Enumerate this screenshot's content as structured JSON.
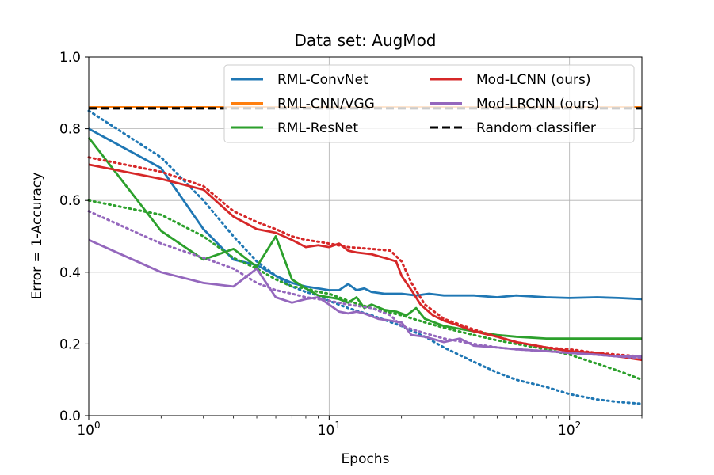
{
  "chart_data": {
    "type": "line",
    "title": "Data set: AugMod",
    "xlabel": "Epochs",
    "ylabel": "Error = 1-Accuracy",
    "xscale": "log",
    "xlim": [
      1,
      200
    ],
    "ylim": [
      0.0,
      1.0
    ],
    "yticks": [
      "0.0",
      "0.2",
      "0.4",
      "0.6",
      "0.8",
      "1.0"
    ],
    "xticks": [
      {
        "value": 1,
        "base": "10",
        "exp": "0"
      },
      {
        "value": 10,
        "base": "10",
        "exp": "1"
      },
      {
        "value": 100,
        "base": "10",
        "exp": "2"
      }
    ],
    "grid": true,
    "legend_position": "top-right",
    "legend_columns": 2,
    "series": [
      {
        "name": "RML-ConvNet",
        "color": "#1f77b4",
        "legend": true,
        "style": "solid",
        "points": [
          [
            1,
            0.8
          ],
          [
            2,
            0.69
          ],
          [
            3,
            0.52
          ],
          [
            4,
            0.435
          ],
          [
            5,
            0.42
          ],
          [
            6,
            0.39
          ],
          [
            7,
            0.37
          ],
          [
            8,
            0.36
          ],
          [
            9,
            0.355
          ],
          [
            10,
            0.35
          ],
          [
            11,
            0.35
          ],
          [
            12,
            0.367
          ],
          [
            13,
            0.35
          ],
          [
            14,
            0.355
          ],
          [
            15,
            0.345
          ],
          [
            17,
            0.34
          ],
          [
            20,
            0.34
          ],
          [
            23,
            0.335
          ],
          [
            26,
            0.34
          ],
          [
            30,
            0.335
          ],
          [
            40,
            0.335
          ],
          [
            50,
            0.33
          ],
          [
            60,
            0.335
          ],
          [
            80,
            0.33
          ],
          [
            100,
            0.328
          ],
          [
            130,
            0.33
          ],
          [
            160,
            0.328
          ],
          [
            200,
            0.325
          ]
        ]
      },
      {
        "name": "RML-ConvNet (val)",
        "color": "#1f77b4",
        "legend": false,
        "style": "dotted",
        "points": [
          [
            1,
            0.85
          ],
          [
            2,
            0.72
          ],
          [
            3,
            0.6
          ],
          [
            4,
            0.5
          ],
          [
            5,
            0.43
          ],
          [
            6,
            0.39
          ],
          [
            7,
            0.36
          ],
          [
            8,
            0.345
          ],
          [
            9,
            0.335
          ],
          [
            10,
            0.32
          ],
          [
            12,
            0.3
          ],
          [
            15,
            0.28
          ],
          [
            20,
            0.25
          ],
          [
            25,
            0.22
          ],
          [
            30,
            0.19
          ],
          [
            40,
            0.15
          ],
          [
            50,
            0.12
          ],
          [
            60,
            0.1
          ],
          [
            80,
            0.08
          ],
          [
            100,
            0.06
          ],
          [
            130,
            0.045
          ],
          [
            160,
            0.038
          ],
          [
            200,
            0.033
          ]
        ]
      },
      {
        "name": "RML-CNN/VGG",
        "color": "#ff7f0e",
        "legend": true,
        "style": "solid",
        "points": [
          [
            1,
            0.86
          ],
          [
            200,
            0.86
          ]
        ]
      },
      {
        "name": "RML-ResNet",
        "color": "#2ca02c",
        "legend": true,
        "style": "solid",
        "points": [
          [
            1,
            0.775
          ],
          [
            2,
            0.515
          ],
          [
            3,
            0.435
          ],
          [
            4,
            0.465
          ],
          [
            5,
            0.415
          ],
          [
            6,
            0.5
          ],
          [
            7,
            0.38
          ],
          [
            8,
            0.355
          ],
          [
            9,
            0.335
          ],
          [
            10,
            0.33
          ],
          [
            11,
            0.325
          ],
          [
            12,
            0.315
          ],
          [
            13,
            0.33
          ],
          [
            14,
            0.3
          ],
          [
            15,
            0.31
          ],
          [
            17,
            0.295
          ],
          [
            19,
            0.29
          ],
          [
            21,
            0.28
          ],
          [
            23,
            0.3
          ],
          [
            25,
            0.27
          ],
          [
            30,
            0.25
          ],
          [
            40,
            0.235
          ],
          [
            50,
            0.225
          ],
          [
            60,
            0.22
          ],
          [
            80,
            0.215
          ],
          [
            100,
            0.215
          ],
          [
            130,
            0.215
          ],
          [
            160,
            0.215
          ],
          [
            200,
            0.215
          ]
        ]
      },
      {
        "name": "RML-ResNet (val)",
        "color": "#2ca02c",
        "legend": false,
        "style": "dotted",
        "points": [
          [
            1,
            0.6
          ],
          [
            2,
            0.56
          ],
          [
            3,
            0.5
          ],
          [
            4,
            0.44
          ],
          [
            5,
            0.41
          ],
          [
            6,
            0.38
          ],
          [
            7,
            0.36
          ],
          [
            8,
            0.355
          ],
          [
            9,
            0.345
          ],
          [
            10,
            0.34
          ],
          [
            12,
            0.32
          ],
          [
            15,
            0.3
          ],
          [
            20,
            0.28
          ],
          [
            25,
            0.26
          ],
          [
            30,
            0.245
          ],
          [
            40,
            0.225
          ],
          [
            50,
            0.21
          ],
          [
            60,
            0.2
          ],
          [
            80,
            0.185
          ],
          [
            100,
            0.17
          ],
          [
            130,
            0.145
          ],
          [
            160,
            0.125
          ],
          [
            200,
            0.1
          ]
        ]
      },
      {
        "name": "Mod-LCNN (ours)",
        "color": "#d62728",
        "legend": true,
        "style": "solid",
        "points": [
          [
            1,
            0.7
          ],
          [
            2,
            0.66
          ],
          [
            3,
            0.63
          ],
          [
            4,
            0.555
          ],
          [
            5,
            0.52
          ],
          [
            6,
            0.51
          ],
          [
            7,
            0.49
          ],
          [
            8,
            0.47
          ],
          [
            9,
            0.475
          ],
          [
            10,
            0.47
          ],
          [
            11,
            0.48
          ],
          [
            12,
            0.46
          ],
          [
            13,
            0.455
          ],
          [
            15,
            0.45
          ],
          [
            17,
            0.44
          ],
          [
            19,
            0.43
          ],
          [
            20,
            0.39
          ],
          [
            22,
            0.35
          ],
          [
            24,
            0.31
          ],
          [
            27,
            0.28
          ],
          [
            30,
            0.265
          ],
          [
            35,
            0.25
          ],
          [
            40,
            0.235
          ],
          [
            50,
            0.22
          ],
          [
            60,
            0.205
          ],
          [
            80,
            0.19
          ],
          [
            100,
            0.18
          ],
          [
            130,
            0.175
          ],
          [
            160,
            0.165
          ],
          [
            200,
            0.155
          ]
        ]
      },
      {
        "name": "Mod-LCNN (ours) (val)",
        "color": "#d62728",
        "legend": false,
        "style": "dotted",
        "points": [
          [
            1,
            0.72
          ],
          [
            2,
            0.68
          ],
          [
            3,
            0.64
          ],
          [
            4,
            0.57
          ],
          [
            5,
            0.54
          ],
          [
            6,
            0.52
          ],
          [
            7,
            0.5
          ],
          [
            8,
            0.49
          ],
          [
            9,
            0.485
          ],
          [
            10,
            0.48
          ],
          [
            12,
            0.47
          ],
          [
            15,
            0.465
          ],
          [
            18,
            0.46
          ],
          [
            20,
            0.43
          ],
          [
            22,
            0.37
          ],
          [
            25,
            0.31
          ],
          [
            30,
            0.27
          ],
          [
            40,
            0.24
          ],
          [
            50,
            0.22
          ],
          [
            60,
            0.205
          ],
          [
            80,
            0.19
          ],
          [
            100,
            0.185
          ],
          [
            130,
            0.175
          ],
          [
            160,
            0.17
          ],
          [
            200,
            0.165
          ]
        ]
      },
      {
        "name": "Mod-LRCNN (ours)",
        "color": "#9467bd",
        "legend": true,
        "style": "solid",
        "points": [
          [
            1,
            0.49
          ],
          [
            2,
            0.4
          ],
          [
            3,
            0.37
          ],
          [
            4,
            0.36
          ],
          [
            5,
            0.41
          ],
          [
            6,
            0.33
          ],
          [
            7,
            0.315
          ],
          [
            8,
            0.325
          ],
          [
            9,
            0.33
          ],
          [
            10,
            0.31
          ],
          [
            11,
            0.29
          ],
          [
            12,
            0.285
          ],
          [
            13,
            0.29
          ],
          [
            14,
            0.285
          ],
          [
            16,
            0.27
          ],
          [
            18,
            0.265
          ],
          [
            20,
            0.26
          ],
          [
            22,
            0.225
          ],
          [
            25,
            0.22
          ],
          [
            30,
            0.205
          ],
          [
            35,
            0.215
          ],
          [
            40,
            0.195
          ],
          [
            50,
            0.19
          ],
          [
            60,
            0.185
          ],
          [
            80,
            0.18
          ],
          [
            100,
            0.175
          ],
          [
            130,
            0.17
          ],
          [
            160,
            0.165
          ],
          [
            200,
            0.165
          ]
        ]
      },
      {
        "name": "Mod-LRCNN (ours) (val)",
        "color": "#9467bd",
        "legend": false,
        "style": "dotted",
        "points": [
          [
            1,
            0.57
          ],
          [
            2,
            0.48
          ],
          [
            3,
            0.44
          ],
          [
            4,
            0.41
          ],
          [
            5,
            0.37
          ],
          [
            6,
            0.35
          ],
          [
            7,
            0.34
          ],
          [
            8,
            0.33
          ],
          [
            9,
            0.325
          ],
          [
            10,
            0.32
          ],
          [
            12,
            0.31
          ],
          [
            15,
            0.3
          ],
          [
            18,
            0.28
          ],
          [
            20,
            0.25
          ],
          [
            25,
            0.23
          ],
          [
            30,
            0.215
          ],
          [
            40,
            0.2
          ],
          [
            50,
            0.19
          ],
          [
            60,
            0.185
          ],
          [
            80,
            0.18
          ],
          [
            100,
            0.175
          ],
          [
            130,
            0.17
          ],
          [
            160,
            0.165
          ],
          [
            200,
            0.16
          ]
        ]
      },
      {
        "name": "Random classifier",
        "color": "#000000",
        "legend": true,
        "style": "dashed",
        "points": [
          [
            1,
            0.857
          ],
          [
            200,
            0.857
          ]
        ]
      }
    ]
  }
}
